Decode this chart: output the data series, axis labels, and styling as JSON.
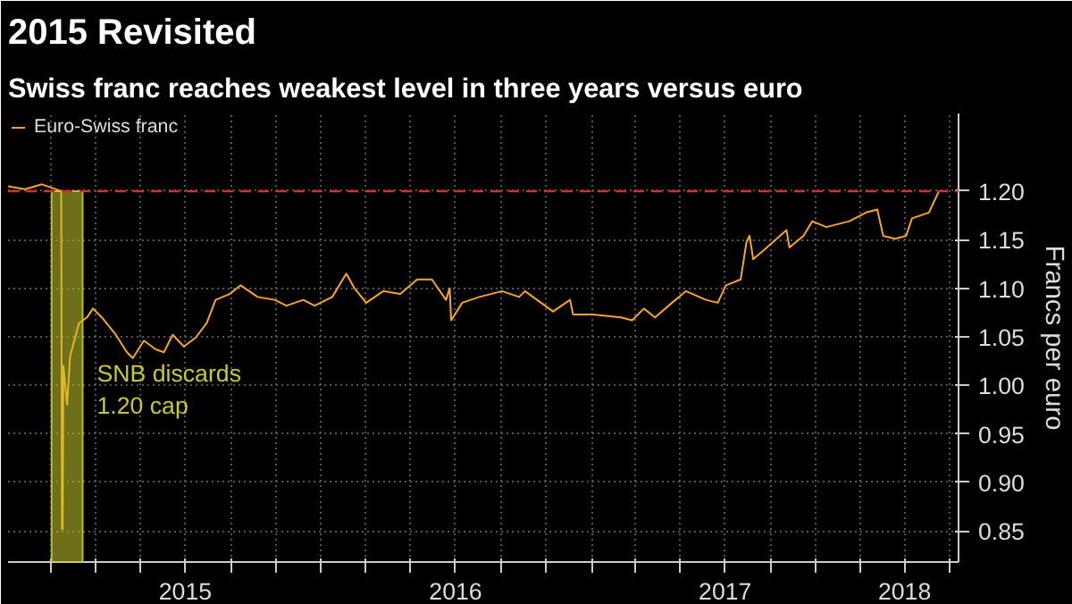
{
  "chart_data": {
    "type": "line",
    "title": "2015 Revisited",
    "subtitle": "Swiss franc reaches weakest level in three years versus euro",
    "ylabel": "Francs per euro",
    "x": [
      "2014-11-03",
      "2014-11-26",
      "2014-12-19",
      "2015-01-14",
      "2015-01-15",
      "2015-01-16",
      "2015-01-17",
      "2015-01-22",
      "2015-01-26",
      "2015-02-07",
      "2015-02-18",
      "2015-02-26",
      "2015-03-10",
      "2015-03-29",
      "2015-04-13",
      "2015-04-21",
      "2015-05-06",
      "2015-05-22",
      "2015-06-02",
      "2015-06-14",
      "2015-06-29",
      "2015-07-15",
      "2015-07-30",
      "2015-08-11",
      "2015-08-30",
      "2015-09-14",
      "2015-10-07",
      "2015-10-30",
      "2015-11-15",
      "2015-12-08",
      "2015-12-23",
      "2016-01-16",
      "2016-02-04",
      "2016-02-15",
      "2016-03-02",
      "2016-03-25",
      "2016-04-17",
      "2016-05-10",
      "2016-05-30",
      "2016-06-18",
      "2016-06-23",
      "2016-06-25",
      "2016-07-10",
      "2016-08-02",
      "2016-09-02",
      "2016-09-25",
      "2016-10-03",
      "2016-11-10",
      "2016-12-03",
      "2016-12-07",
      "2017-01-03",
      "2017-02-10",
      "2017-02-25",
      "2017-03-13",
      "2017-03-28",
      "2017-04-20",
      "2017-05-09",
      "2017-06-05",
      "2017-06-21",
      "2017-07-02",
      "2017-07-22",
      "2017-07-30",
      "2017-08-03",
      "2017-08-08",
      "2017-08-22",
      "2017-09-22",
      "2017-09-26",
      "2017-10-15",
      "2017-10-27",
      "2017-11-15",
      "2017-12-16",
      "2018-01-08",
      "2018-01-23",
      "2018-01-31",
      "2018-02-16",
      "2018-03-03",
      "2018-03-11",
      "2018-04-03",
      "2018-04-14",
      "2018-04-16"
    ],
    "series": [
      {
        "name": "Euro-Swiss franc",
        "color": "#f5a623",
        "values": [
          1.205,
          1.202,
          1.207,
          1.2,
          0.852,
          0.852,
          1.02,
          0.98,
          1.03,
          1.064,
          1.07,
          1.079,
          1.07,
          1.052,
          1.034,
          1.028,
          1.046,
          1.037,
          1.034,
          1.052,
          1.04,
          1.049,
          1.064,
          1.088,
          1.094,
          1.103,
          1.091,
          1.088,
          1.082,
          1.088,
          1.082,
          1.091,
          1.115,
          1.1,
          1.085,
          1.097,
          1.094,
          1.109,
          1.109,
          1.088,
          1.1,
          1.067,
          1.085,
          1.091,
          1.097,
          1.091,
          1.097,
          1.076,
          1.088,
          1.073,
          1.073,
          1.07,
          1.067,
          1.079,
          1.07,
          1.085,
          1.097,
          1.088,
          1.085,
          1.103,
          1.109,
          1.148,
          1.154,
          1.13,
          1.139,
          1.16,
          1.142,
          1.154,
          1.169,
          1.163,
          1.169,
          1.178,
          1.181,
          1.154,
          1.151,
          1.154,
          1.172,
          1.178,
          1.196,
          1.199
        ]
      }
    ],
    "xlim": [
      "2014-11-03",
      "2018-05-13"
    ],
    "xticks": [
      {
        "value": "2015-01-01",
        "label": null
      },
      {
        "value": "2015-03-01",
        "label": null
      },
      {
        "value": "2015-05-01",
        "label": null
      },
      {
        "value": "2015-07-01",
        "label": "2015"
      },
      {
        "value": "2015-09-01",
        "label": null
      },
      {
        "value": "2015-11-01",
        "label": null
      },
      {
        "value": "2016-01-01",
        "label": null
      },
      {
        "value": "2016-03-01",
        "label": null
      },
      {
        "value": "2016-05-01",
        "label": null
      },
      {
        "value": "2016-07-01",
        "label": "2016"
      },
      {
        "value": "2016-09-01",
        "label": null
      },
      {
        "value": "2016-11-01",
        "label": null
      },
      {
        "value": "2017-01-01",
        "label": null
      },
      {
        "value": "2017-03-01",
        "label": null
      },
      {
        "value": "2017-05-01",
        "label": null
      },
      {
        "value": "2017-07-01",
        "label": "2017"
      },
      {
        "value": "2017-09-01",
        "label": null
      },
      {
        "value": "2017-11-01",
        "label": null
      },
      {
        "value": "2018-01-01",
        "label": null
      },
      {
        "value": "2018-03-01",
        "label": "2018"
      },
      {
        "value": "2018-05-01",
        "label": null
      }
    ],
    "ylim": [
      0.818,
      1.28
    ],
    "yticks": [
      {
        "value": 0.85,
        "label": "0.85"
      },
      {
        "value": 0.9,
        "label": "0.90"
      },
      {
        "value": 0.95,
        "label": "0.95"
      },
      {
        "value": 1.0,
        "label": "1.00"
      },
      {
        "value": 1.05,
        "label": "1.05"
      },
      {
        "value": 1.1,
        "label": "1.10"
      },
      {
        "value": 1.15,
        "label": "1.15"
      },
      {
        "value": 1.2,
        "label": "1.20"
      }
    ],
    "ref_lines": [
      {
        "axis": "y",
        "value": 1.2,
        "color": "#d0312d",
        "line_style": "dashed"
      }
    ],
    "bands": [
      {
        "axis": "x",
        "from": "2015-01-01",
        "to": "2015-02-12",
        "label": "SNB discards\n1.20 cap",
        "color": "#c8c832"
      }
    ],
    "grid": true,
    "legend": "top left",
    "line_style": "solid",
    "marker": "none"
  }
}
